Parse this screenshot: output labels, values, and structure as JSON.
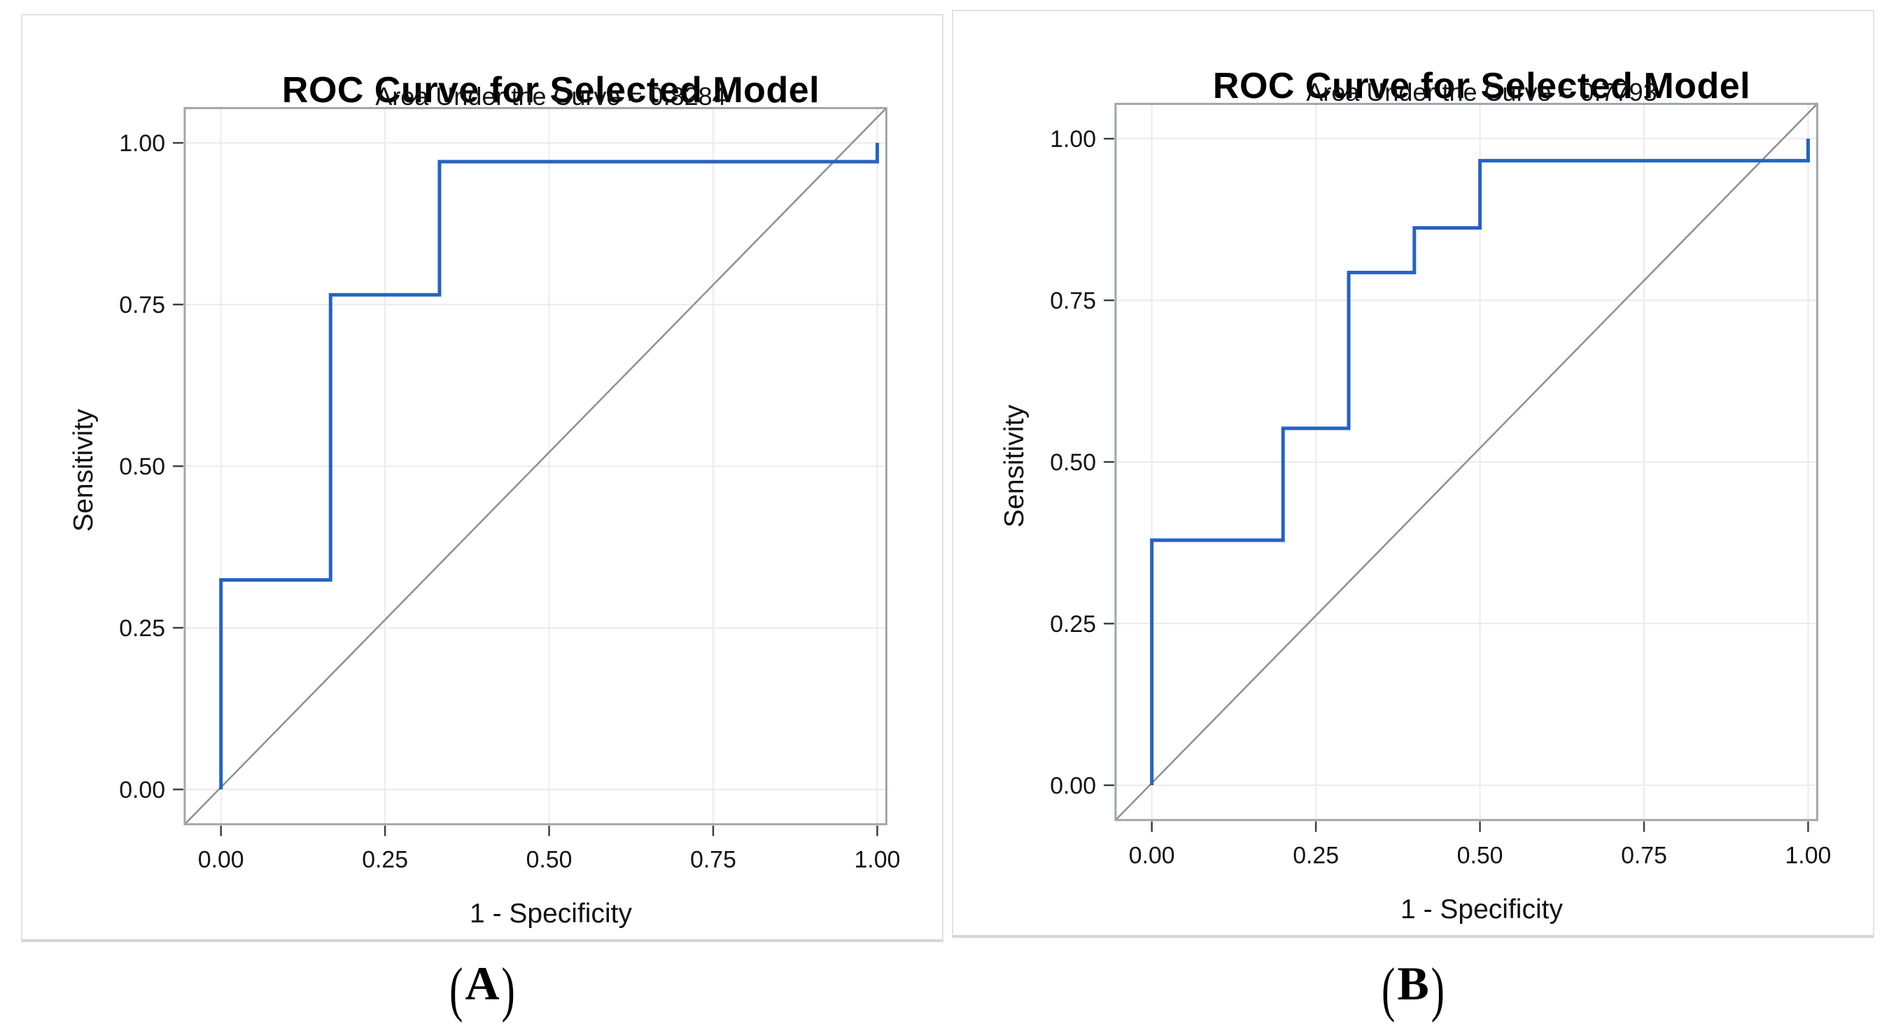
{
  "chart_data": [
    {
      "type": "line",
      "panel_caption": "(A)",
      "title": "ROC Curve for Selected Model",
      "subtitle": "Area Under the Curve = 0.8284",
      "auc": 0.8284,
      "xlabel": "1 - Specificity",
      "ylabel": "Sensitivity",
      "xlim": [
        0,
        1
      ],
      "ylim": [
        0,
        1
      ],
      "grid": true,
      "legend": "none",
      "x_ticks": [
        0,
        0.25,
        0.5,
        0.75,
        1
      ],
      "y_ticks": [
        0,
        0.25,
        0.5,
        0.75,
        1
      ],
      "x_tick_labels": [
        "0.00",
        "0.25",
        "0.50",
        "0.75",
        "1.00"
      ],
      "y_tick_labels": [
        "0.00",
        "0.25",
        "0.50",
        "0.75",
        "1.00"
      ],
      "series": [
        {
          "name": "chance-diagonal",
          "color": "#8c9093",
          "frame_reference": true,
          "points": [
            [
              0,
              0
            ],
            [
              1,
              1
            ]
          ]
        },
        {
          "name": "roc-curve",
          "color": "#2562c3",
          "points": [
            [
              0,
              0
            ],
            [
              0,
              0.324
            ],
            [
              0.167,
              0.324
            ],
            [
              0.167,
              0.765
            ],
            [
              0.333,
              0.765
            ],
            [
              0.333,
              0.971
            ],
            [
              1,
              0.971
            ],
            [
              1,
              1
            ]
          ]
        }
      ]
    },
    {
      "type": "line",
      "panel_caption": "(B)",
      "title": "ROC Curve for Selected Model",
      "subtitle": "Area Under the Curve = 0.7793",
      "auc": 0.7793,
      "xlabel": "1 - Specificity",
      "ylabel": "Sensitivity",
      "xlim": [
        0,
        1
      ],
      "ylim": [
        0,
        1
      ],
      "grid": true,
      "legend": "none",
      "x_ticks": [
        0,
        0.25,
        0.5,
        0.75,
        1
      ],
      "y_ticks": [
        0,
        0.25,
        0.5,
        0.75,
        1
      ],
      "x_tick_labels": [
        "0.00",
        "0.25",
        "0.50",
        "0.75",
        "1.00"
      ],
      "y_tick_labels": [
        "0.00",
        "0.25",
        "0.50",
        "0.75",
        "1.00"
      ],
      "series": [
        {
          "name": "chance-diagonal",
          "color": "#8c9093",
          "frame_reference": true,
          "points": [
            [
              0,
              0
            ],
            [
              1,
              1
            ]
          ]
        },
        {
          "name": "roc-curve",
          "color": "#2562c3",
          "points": [
            [
              0,
              0
            ],
            [
              0,
              0.379
            ],
            [
              0.2,
              0.379
            ],
            [
              0.2,
              0.552
            ],
            [
              0.3,
              0.552
            ],
            [
              0.3,
              0.793
            ],
            [
              0.4,
              0.793
            ],
            [
              0.4,
              0.862
            ],
            [
              0.5,
              0.862
            ],
            [
              0.5,
              0.966
            ],
            [
              1,
              0.966
            ],
            [
              1,
              1
            ]
          ]
        }
      ]
    }
  ]
}
